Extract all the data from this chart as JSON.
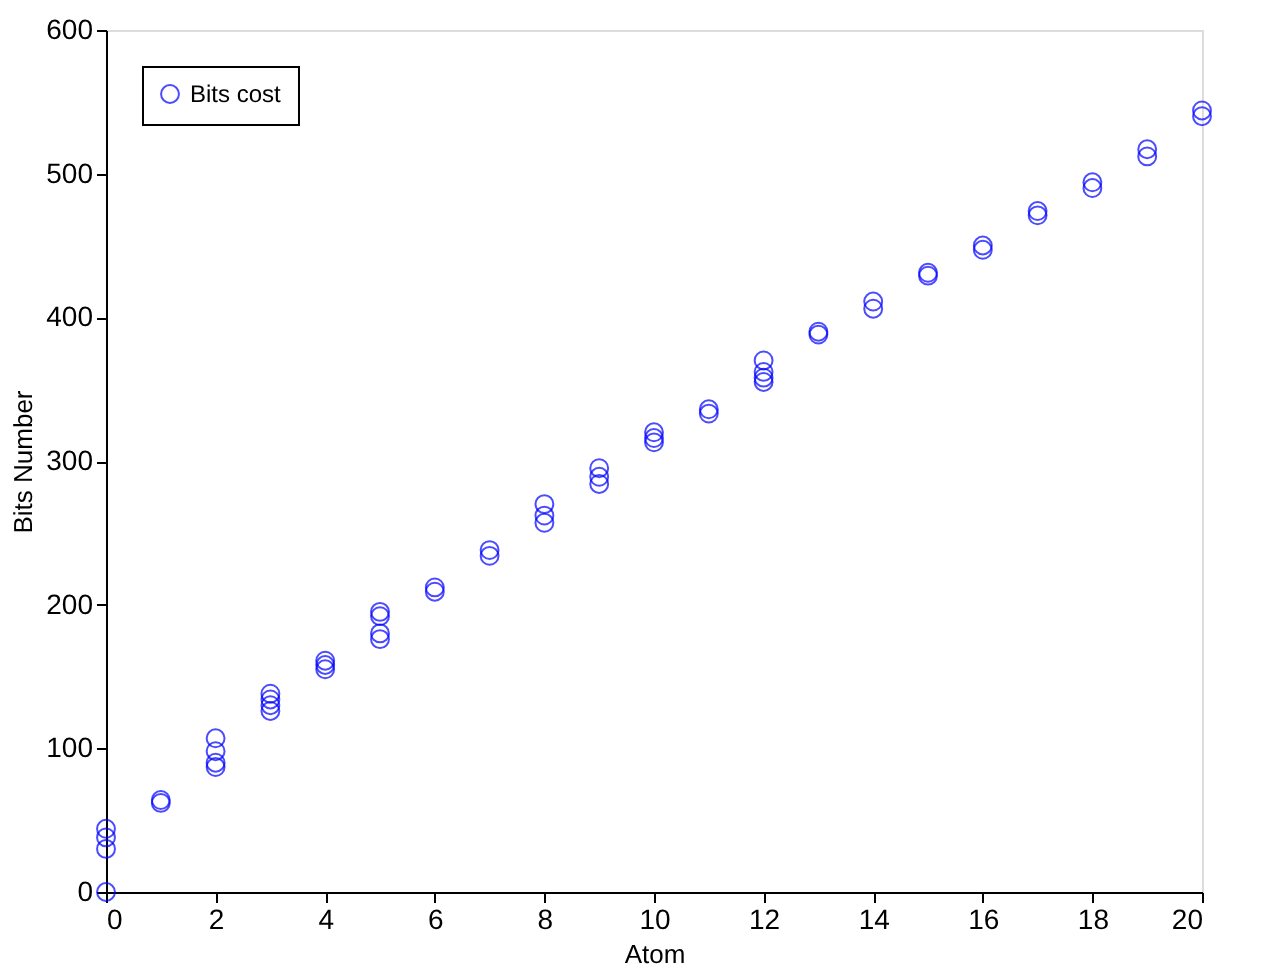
{
  "chart_data": {
    "type": "scatter",
    "xlabel": "Atom",
    "ylabel": "Bits Number",
    "x": [
      0,
      0,
      0,
      0,
      1,
      1,
      2,
      2,
      2,
      2,
      3,
      3,
      3,
      3,
      4,
      4,
      4,
      5,
      5,
      5,
      5,
      6,
      6,
      7,
      7,
      8,
      8,
      8,
      9,
      9,
      9,
      10,
      10,
      10,
      11,
      11,
      12,
      12,
      12,
      12,
      13,
      13,
      14,
      14,
      15,
      15,
      16,
      16,
      17,
      17,
      18,
      18,
      19,
      19,
      20,
      20
    ],
    "series": [
      {
        "name": "Bits cost",
        "color": "#0000ff",
        "values": [
          0,
          30,
          38,
          44,
          62,
          64,
          87,
          90,
          98,
          107,
          126,
          130,
          134,
          138,
          155,
          158,
          161,
          176,
          180,
          192,
          195,
          209,
          212,
          234,
          238,
          257,
          262,
          270,
          284,
          289,
          295,
          313,
          316,
          320,
          333,
          336,
          355,
          358,
          362,
          370,
          388,
          390,
          406,
          411,
          429,
          431,
          447,
          450,
          471,
          474,
          490,
          494,
          512,
          517,
          540,
          544
        ]
      }
    ],
    "xlim": [
      0,
      20
    ],
    "xticks": [
      0,
      2,
      4,
      6,
      8,
      10,
      12,
      14,
      16,
      18,
      20
    ],
    "ylim": [
      0,
      600
    ],
    "yticks": [
      0,
      100,
      200,
      300,
      400,
      500,
      600
    ],
    "grid": false,
    "legend": "top left",
    "marker": "circle"
  }
}
